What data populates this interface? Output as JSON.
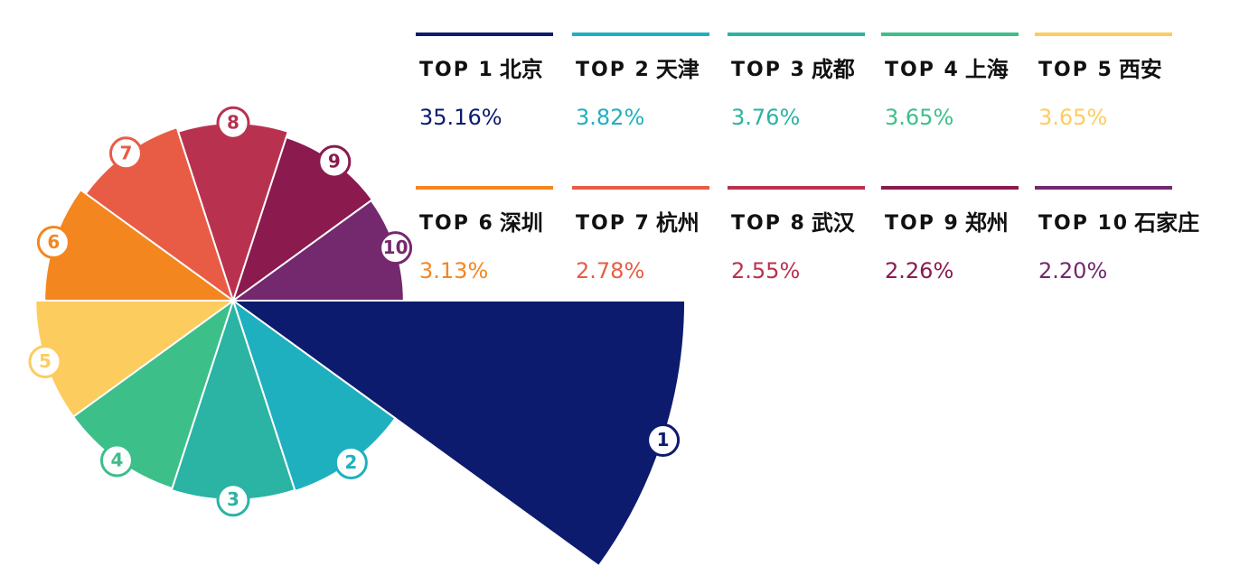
{
  "chart_data": {
    "type": "rose",
    "tops": [
      "TOP 1",
      "TOP 2",
      "TOP 3",
      "TOP 4",
      "TOP 5",
      "TOP 6",
      "TOP 7",
      "TOP 8",
      "TOP 9",
      "TOP 10"
    ],
    "categories": [
      "北京",
      "天津",
      "成都",
      "上海",
      "西安",
      "深圳",
      "杭州",
      "武汉",
      "郑州",
      "石家庄"
    ],
    "markers": [
      "1",
      "2",
      "3",
      "4",
      "5",
      "6",
      "7",
      "8",
      "9",
      "10"
    ],
    "values": [
      35.16,
      3.82,
      3.76,
      3.65,
      3.65,
      3.13,
      2.78,
      2.55,
      2.26,
      2.2
    ],
    "value_labels": [
      "35.16%",
      "3.82%",
      "3.76%",
      "3.65%",
      "3.65%",
      "3.13%",
      "2.78%",
      "2.55%",
      "2.26%",
      "2.20%"
    ],
    "colors": [
      "#0d1b6e",
      "#1fb0c0",
      "#2bb3a3",
      "#3dbf8a",
      "#fdcc5e",
      "#f4861f",
      "#e85c45",
      "#b8324f",
      "#8b1a4f",
      "#74286e"
    ]
  }
}
